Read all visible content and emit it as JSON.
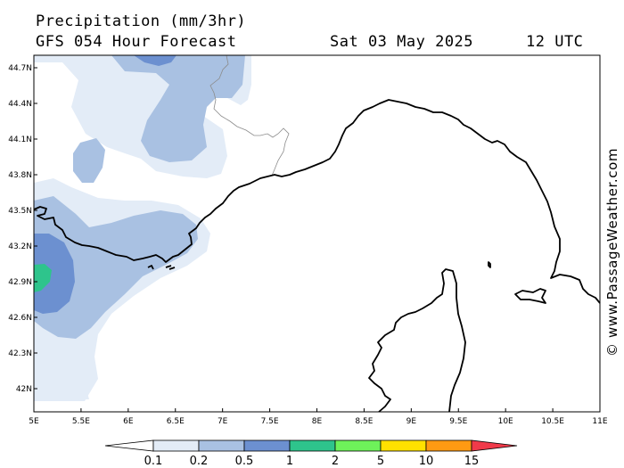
{
  "header": {
    "title": "Precipitation (mm/3hr)",
    "subtitle": "GFS 054 Hour Forecast",
    "date": "Sat 03 May 2025",
    "time": "12 UTC"
  },
  "credit": "© www.PassageWeather.com",
  "map": {
    "lat_labels": [
      "44.7N",
      "44.4N",
      "44.1N",
      "43.8N",
      "43.5N",
      "43.2N",
      "42.9N",
      "42.6N",
      "42.3N",
      "42N"
    ],
    "lon_labels": [
      "5E",
      "5.5E",
      "6E",
      "6.5E",
      "7E",
      "7.5E",
      "8E",
      "8.5E",
      "9E",
      "9.5E",
      "10E",
      "10.5E",
      "11E"
    ]
  },
  "legend": {
    "labels": [
      "0.1",
      "0.2",
      "0.5",
      "1",
      "2",
      "5",
      "10",
      "15"
    ],
    "colors": {
      "band_0": "#ffffff",
      "band_1": "#e3ecf7",
      "band_2": "#a9c1e2",
      "band_3": "#6c90d0",
      "band_4": "#2ec48c",
      "band_5": "#6ef25a",
      "band_6": "#ffe100",
      "band_7": "#ff9a12",
      "band_8": "#f03a4a"
    }
  }
}
